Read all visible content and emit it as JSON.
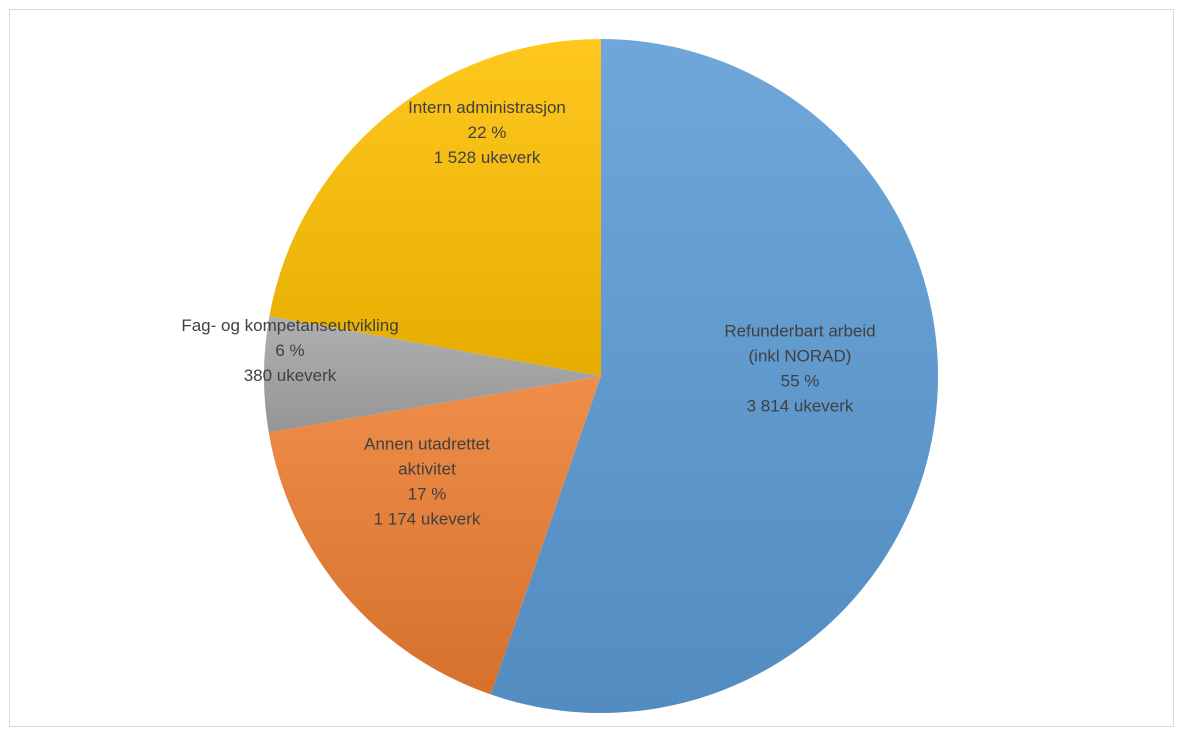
{
  "chart_data": {
    "type": "pie",
    "title": "",
    "unit": "ukeverk",
    "slices": [
      {
        "name": "Refunderbart arbeid (inkl NORAD)",
        "label_lines": [
          "Refunderbart arbeid",
          "(inkl NORAD)"
        ],
        "percent_label": "55 %",
        "value_label": "3 814 ukeverk",
        "value": 3814,
        "color": "#5B9BD5"
      },
      {
        "name": "Annen utadrettet aktivitet",
        "label_lines": [
          "Annen utadrettet",
          "aktivitet"
        ],
        "percent_label": "17 %",
        "value_label": "1 174 ukeverk",
        "value": 1174,
        "color": "#ED7D31"
      },
      {
        "name": "Fag- og kompetanseutvikling",
        "label_lines": [
          "Fag- og kompetanseutvikling"
        ],
        "percent_label": "6 %",
        "value_label": "380 ukeverk",
        "value": 380,
        "color": "#A5A5A5"
      },
      {
        "name": "Intern administrasjon",
        "label_lines": [
          "Intern administrasjon"
        ],
        "percent_label": "22 %",
        "value_label": "1 528 ukeverk",
        "value": 1528,
        "color": "#FFC000"
      }
    ],
    "start_angle_deg": 0,
    "direction": "clockwise",
    "legend": "none",
    "data_labels": "inside"
  }
}
